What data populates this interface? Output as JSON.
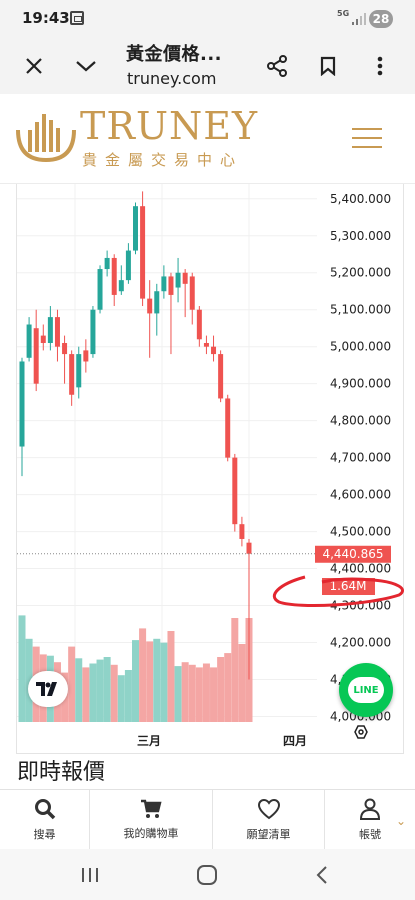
{
  "status_bar": {
    "time": "19:43",
    "network": "5G",
    "battery": "28"
  },
  "browser": {
    "page_title": "黃金價格...",
    "url": "truney.com"
  },
  "site": {
    "logo_name": "TRUNEY",
    "logo_sub": "貴金屬交易中心"
  },
  "chart_data": {
    "type": "candlestick",
    "instrument": "gold price",
    "x_tick_labels": [
      "三月",
      "四月"
    ],
    "y_tick_labels": [
      "5,400.000",
      "5,300.000",
      "5,200.000",
      "5,100.000",
      "5,000.000",
      "4,900.000",
      "4,800.000",
      "4,700.000",
      "4,600.000",
      "4,500.000",
      "4,400.000",
      "4,300.000",
      "4,200.000",
      "4,100.000",
      "4,000.000"
    ],
    "y_range": [
      3985,
      5440
    ],
    "last_price_label": "4,440.865",
    "last_volume_label": "1.64M",
    "colors": {
      "up": "#26a69a",
      "down": "#ef5350",
      "vol_up": "#8fd3c8",
      "vol_down": "#f4a6a4"
    },
    "candles": [
      {
        "o": 4730,
        "c": 4960,
        "h": 4970,
        "l": 4650
      },
      {
        "o": 4970,
        "c": 5060,
        "h": 5080,
        "l": 4960
      },
      {
        "o": 5050,
        "c": 4900,
        "h": 5100,
        "l": 4880
      },
      {
        "o": 5030,
        "c": 5010,
        "h": 5060,
        "l": 4990
      },
      {
        "o": 5010,
        "c": 5080,
        "h": 5110,
        "l": 4990
      },
      {
        "o": 5080,
        "c": 5000,
        "h": 5100,
        "l": 4960
      },
      {
        "o": 5010,
        "c": 4980,
        "h": 5030,
        "l": 4900
      },
      {
        "o": 4980,
        "c": 4870,
        "h": 4990,
        "l": 4840
      },
      {
        "o": 4890,
        "c": 4980,
        "h": 5000,
        "l": 4860
      },
      {
        "o": 4990,
        "c": 4960,
        "h": 5020,
        "l": 4930
      },
      {
        "o": 4980,
        "c": 5100,
        "h": 5110,
        "l": 4970
      },
      {
        "o": 5100,
        "c": 5210,
        "h": 5220,
        "l": 5090
      },
      {
        "o": 5210,
        "c": 5240,
        "h": 5260,
        "l": 5190
      },
      {
        "o": 5240,
        "c": 5140,
        "h": 5250,
        "l": 5110
      },
      {
        "o": 5150,
        "c": 5180,
        "h": 5220,
        "l": 5140
      },
      {
        "o": 5180,
        "c": 5260,
        "h": 5280,
        "l": 5170
      },
      {
        "o": 5260,
        "c": 5380,
        "h": 5390,
        "l": 5250
      },
      {
        "o": 5380,
        "c": 5130,
        "h": 5420,
        "l": 5110
      },
      {
        "o": 5130,
        "c": 5090,
        "h": 5180,
        "l": 4970
      },
      {
        "o": 5090,
        "c": 5150,
        "h": 5170,
        "l": 5030
      },
      {
        "o": 5150,
        "c": 5190,
        "h": 5220,
        "l": 5130
      },
      {
        "o": 5190,
        "c": 5140,
        "h": 5200,
        "l": 4980
      },
      {
        "o": 5160,
        "c": 5200,
        "h": 5240,
        "l": 5120
      },
      {
        "o": 5200,
        "c": 5170,
        "h": 5210,
        "l": 5080
      },
      {
        "o": 5190,
        "c": 5100,
        "h": 5200,
        "l": 5060
      },
      {
        "o": 5100,
        "c": 5020,
        "h": 5110,
        "l": 5000
      },
      {
        "o": 5010,
        "c": 5000,
        "h": 5030,
        "l": 4980
      },
      {
        "o": 5000,
        "c": 4980,
        "h": 5030,
        "l": 4960
      },
      {
        "o": 4980,
        "c": 4860,
        "h": 4990,
        "l": 4850
      },
      {
        "o": 4860,
        "c": 4700,
        "h": 4870,
        "l": 4690
      },
      {
        "o": 4700,
        "c": 4520,
        "h": 4710,
        "l": 4500
      },
      {
        "o": 4520,
        "c": 4480,
        "h": 4540,
        "l": 4460
      },
      {
        "o": 4470,
        "c": 4440,
        "h": 4480,
        "l": 4100
      }
    ],
    "volume_levels": [
      0.82,
      0.64,
      0.58,
      0.52,
      0.51,
      0.46,
      0.38,
      0.58,
      0.49,
      0.42,
      0.45,
      0.48,
      0.5,
      0.44,
      0.36,
      0.4,
      0.63,
      0.72,
      0.62,
      0.64,
      0.61,
      0.7,
      0.43,
      0.46,
      0.44,
      0.42,
      0.45,
      0.42,
      0.5,
      0.53,
      0.8,
      0.6,
      0.8
    ]
  },
  "section": {
    "title": "即時報價"
  },
  "bottom_nav": {
    "search": "搜尋",
    "cart": "我的購物車",
    "wishlist": "願望清單",
    "account": "帳號"
  },
  "line_button": {
    "label": "LINE"
  }
}
